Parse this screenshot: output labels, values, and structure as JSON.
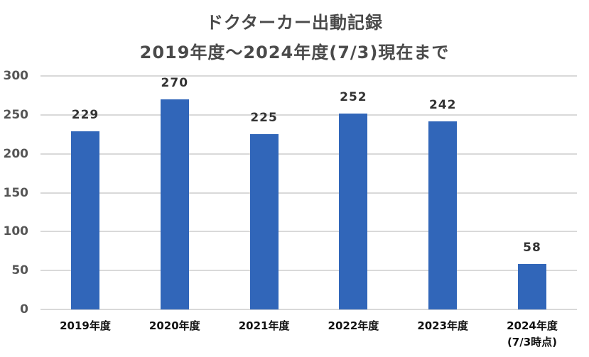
{
  "chart_data": {
    "type": "bar",
    "title": "ドクターカー出動記録",
    "subtitle": "2019年度〜2024年度(7/3)現在まで",
    "categories": [
      "2019年度",
      "2020年度",
      "2021年度",
      "2022年度",
      "2023年度",
      "2024年度\n(7/3時点)"
    ],
    "category_lines": [
      [
        "2019年度"
      ],
      [
        "2020年度"
      ],
      [
        "2021年度"
      ],
      [
        "2022年度"
      ],
      [
        "2023年度"
      ],
      [
        "2024年度",
        "(7/3時点)"
      ]
    ],
    "values": [
      229,
      270,
      225,
      252,
      242,
      58
    ],
    "data_labels": [
      "229",
      "270",
      "225",
      "252",
      "242",
      "58"
    ],
    "xlabel": "",
    "ylabel": "",
    "ylim": [
      0,
      300
    ],
    "yticks": [
      "0",
      "50",
      "100",
      "150",
      "200",
      "250",
      "300"
    ],
    "grid": true,
    "legend": null,
    "bar_color": "#3166b9"
  }
}
